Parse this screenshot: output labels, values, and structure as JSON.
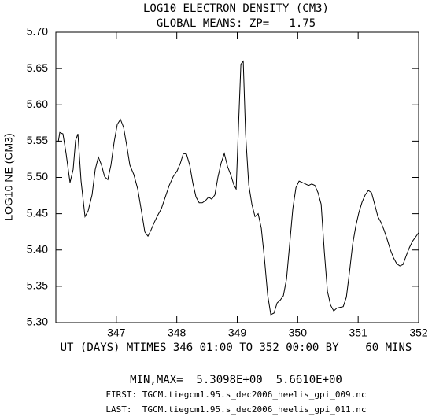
{
  "chart_data": {
    "type": "line",
    "title": "LOG10 ELECTRON DENSITY (CM3)",
    "subtitle": "GLOBAL MEANS: ZP=   1.75",
    "xlabel": "UT (DAYS) MTIMES 346 01:00 TO 352 00:00 BY    60 MINS",
    "ylabel": "LOG10 NE (CM3)",
    "annotations": [
      "MIN,MAX=  5.3098E+00  5.6610E+00",
      "FIRST: TGCM.tiegcm1.95.s_dec2006_heelis_gpi_009.nc",
      "LAST:  TGCM.tiegcm1.95.s_dec2006_heelis_gpi_011.nc"
    ],
    "xlim": [
      346,
      352
    ],
    "ylim": [
      5.3,
      5.7
    ],
    "xticks": [
      347,
      348,
      349,
      350,
      351,
      352
    ],
    "yticks": [
      {
        "value": 5.3,
        "label": "5.30"
      },
      5.35,
      {
        "value": 5.4,
        "label": "5.40"
      },
      5.45,
      {
        "value": 5.5,
        "label": "5.50"
      },
      5.55,
      {
        "value": 5.6,
        "label": "5.60"
      },
      5.65,
      {
        "value": 5.7,
        "label": "5.70"
      }
    ],
    "color": "#000000",
    "x": [
      346.04,
      346.065,
      346.117,
      346.169,
      346.234,
      346.286,
      346.326,
      346.365,
      346.417,
      346.482,
      346.534,
      346.599,
      346.651,
      346.703,
      346.755,
      346.807,
      346.859,
      346.911,
      346.964,
      347.016,
      347.068,
      347.12,
      347.172,
      347.224,
      347.289,
      347.354,
      347.419,
      347.471,
      347.523,
      347.576,
      347.628,
      347.68,
      347.745,
      347.81,
      347.875,
      347.94,
      348.005,
      348.057,
      348.109,
      348.161,
      348.214,
      348.266,
      348.318,
      348.37,
      348.422,
      348.474,
      348.526,
      348.578,
      348.63,
      348.682,
      348.734,
      348.786,
      348.839,
      348.891,
      348.943,
      348.982,
      349.021,
      349.06,
      349.099,
      349.138,
      349.19,
      349.242,
      349.294,
      349.346,
      349.398,
      349.451,
      349.503,
      349.555,
      349.607,
      349.659,
      349.711,
      349.763,
      349.815,
      349.867,
      349.919,
      349.971,
      350.023,
      350.076,
      350.128,
      350.18,
      350.232,
      350.284,
      350.336,
      350.388,
      350.44,
      350.492,
      350.544,
      350.596,
      350.648,
      350.701,
      350.753,
      350.805,
      350.857,
      350.909,
      350.961,
      351.013,
      351.065,
      351.117,
      351.169,
      351.221,
      351.273,
      351.326,
      351.378,
      351.43,
      351.482,
      351.534,
      351.586,
      351.638,
      351.69,
      351.742,
      351.794,
      351.846,
      351.898,
      351.951,
      352.0
    ],
    "values": [
      5.549,
      5.562,
      5.56,
      5.533,
      5.493,
      5.511,
      5.551,
      5.56,
      5.495,
      5.446,
      5.454,
      5.476,
      5.511,
      5.528,
      5.517,
      5.501,
      5.497,
      5.517,
      5.549,
      5.573,
      5.58,
      5.569,
      5.544,
      5.517,
      5.504,
      5.484,
      5.452,
      5.425,
      5.419,
      5.428,
      5.438,
      5.447,
      5.457,
      5.473,
      5.489,
      5.501,
      5.509,
      5.519,
      5.533,
      5.532,
      5.517,
      5.492,
      5.473,
      5.465,
      5.465,
      5.468,
      5.473,
      5.47,
      5.476,
      5.501,
      5.52,
      5.533,
      5.515,
      5.504,
      5.49,
      5.484,
      5.571,
      5.656,
      5.66,
      5.56,
      5.49,
      5.463,
      5.446,
      5.45,
      5.43,
      5.387,
      5.338,
      5.311,
      5.313,
      5.327,
      5.331,
      5.337,
      5.36,
      5.408,
      5.457,
      5.486,
      5.495,
      5.493,
      5.491,
      5.489,
      5.491,
      5.489,
      5.479,
      5.463,
      5.398,
      5.343,
      5.324,
      5.316,
      5.32,
      5.321,
      5.322,
      5.335,
      5.37,
      5.408,
      5.433,
      5.452,
      5.466,
      5.476,
      5.482,
      5.479,
      5.463,
      5.446,
      5.438,
      5.427,
      5.414,
      5.4,
      5.389,
      5.381,
      5.378,
      5.38,
      5.392,
      5.403,
      5.412,
      5.418,
      5.424
    ]
  }
}
